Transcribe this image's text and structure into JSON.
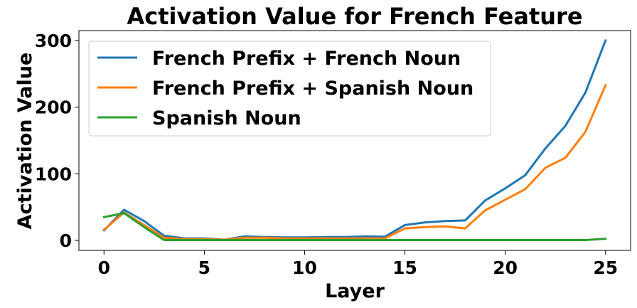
{
  "chart_data": {
    "type": "line",
    "title": "Activation Value for French Feature",
    "xlabel": "Layer",
    "ylabel": "Activation Value",
    "xlim": [
      -1.25,
      26.25
    ],
    "ylim": [
      -15,
      315
    ],
    "xticks": [
      0,
      5,
      10,
      15,
      20,
      25
    ],
    "yticks": [
      0,
      100,
      200,
      300
    ],
    "grid": false,
    "legend_position": "top-left",
    "x": [
      0,
      1,
      2,
      3,
      4,
      5,
      6,
      7,
      8,
      9,
      10,
      11,
      12,
      13,
      14,
      15,
      16,
      17,
      18,
      19,
      20,
      21,
      22,
      23,
      24,
      25
    ],
    "series": [
      {
        "name": "French Prefix + French Noun",
        "color": "#1f77b4",
        "values": [
          15,
          46,
          29,
          7,
          3,
          3,
          1,
          6,
          5,
          4.5,
          4.5,
          5,
          5,
          6,
          5.5,
          23,
          27,
          29,
          30,
          60,
          78,
          98,
          138,
          172,
          222,
          300
        ]
      },
      {
        "name": "French Prefix + Spanish Noun",
        "color": "#ff7f0e",
        "values": [
          16,
          42,
          23,
          4,
          2,
          2,
          1,
          4,
          4,
          3,
          3,
          3,
          3,
          3,
          3,
          18,
          20,
          21,
          18,
          45,
          61,
          77,
          109,
          124,
          163,
          233
        ]
      },
      {
        "name": "Spanish Noun",
        "color": "#2ca02c",
        "values": [
          35,
          41,
          20,
          0.5,
          0.5,
          0.5,
          0.5,
          0.5,
          0.5,
          0.5,
          0.5,
          0.5,
          0.5,
          0.5,
          0.5,
          0.5,
          0.5,
          0.5,
          0.5,
          0.5,
          0.5,
          0.5,
          0.5,
          0.5,
          0.5,
          2.5
        ]
      }
    ]
  }
}
